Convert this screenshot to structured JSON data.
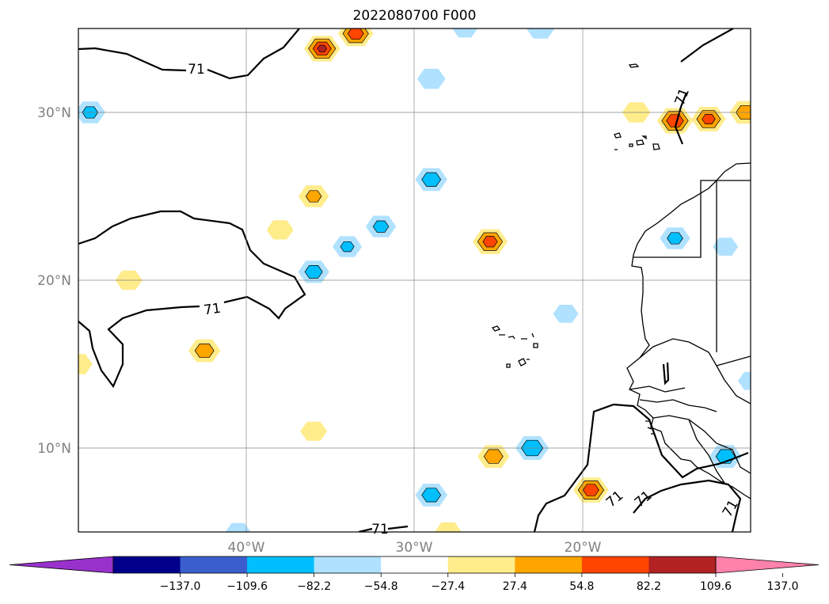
{
  "chart_data": {
    "type": "heatmap",
    "title": "2022080700 F000",
    "map": {
      "lon_range": [
        -50,
        -10
      ],
      "lat_range": [
        5,
        35
      ],
      "grid": true,
      "grid_lons": [
        -40,
        -30,
        -20
      ],
      "grid_lats": [
        10,
        20,
        30
      ],
      "x_tick_labels": [
        "40°W",
        "30°W",
        "20°W"
      ],
      "y_tick_labels": [
        "10°N",
        "20°N",
        "30°N"
      ]
    },
    "contour_level_label": "71",
    "colorbar": {
      "orientation": "horizontal",
      "extend": "both",
      "colors": [
        "#9932cc",
        "#00008b",
        "#3a5fcd",
        "#00bfff",
        "#b0e2ff",
        "#ffffff",
        "#ffec8b",
        "#ffa500",
        "#ff4500",
        "#b22222",
        "#ff82ab"
      ],
      "tick_labels": [
        "−137.0",
        "−109.6",
        "−82.2",
        "−54.8",
        "−27.4",
        "27.4",
        "54.8",
        "82.2",
        "109.6",
        "137.0"
      ]
    },
    "anomaly_blobs": [
      {
        "lon": -35.5,
        "lat": 33.8,
        "value": 110
      },
      {
        "lon": -33.5,
        "lat": 34.7,
        "value": 100
      },
      {
        "lon": -14.5,
        "lat": 29.5,
        "value": 105
      },
      {
        "lon": -12.5,
        "lat": 29.6,
        "value": 90
      },
      {
        "lon": -10.3,
        "lat": 30.0,
        "value": 70
      },
      {
        "lon": -16.8,
        "lat": 30.0,
        "value": 50
      },
      {
        "lon": -25.5,
        "lat": 22.3,
        "value": 95
      },
      {
        "lon": -36.0,
        "lat": 25.0,
        "value": 60
      },
      {
        "lon": -38.0,
        "lat": 23.0,
        "value": 45
      },
      {
        "lon": -47.0,
        "lat": 20.0,
        "value": 45
      },
      {
        "lon": -42.5,
        "lat": 15.8,
        "value": 70
      },
      {
        "lon": -50.0,
        "lat": 15.0,
        "value": 50
      },
      {
        "lon": -36.0,
        "lat": 11.0,
        "value": 45
      },
      {
        "lon": -25.3,
        "lat": 9.5,
        "value": 70
      },
      {
        "lon": -19.5,
        "lat": 7.5,
        "value": 100
      },
      {
        "lon": -28.0,
        "lat": 5.0,
        "value": 45
      },
      {
        "lon": -49.3,
        "lat": 30.0,
        "value": -60
      },
      {
        "lon": -29.0,
        "lat": 32.0,
        "value": -50
      },
      {
        "lon": -29.0,
        "lat": 26.0,
        "value": -70
      },
      {
        "lon": -32.0,
        "lat": 23.2,
        "value": -60
      },
      {
        "lon": -34.0,
        "lat": 22.0,
        "value": -55
      },
      {
        "lon": -36.0,
        "lat": 20.5,
        "value": -65
      },
      {
        "lon": -14.5,
        "lat": 22.5,
        "value": -60
      },
      {
        "lon": -11.5,
        "lat": 22.0,
        "value": -40
      },
      {
        "lon": -21.0,
        "lat": 18.0,
        "value": -40
      },
      {
        "lon": -23.0,
        "lat": 10.0,
        "value": -80
      },
      {
        "lon": -29.0,
        "lat": 7.2,
        "value": -70
      },
      {
        "lon": -11.5,
        "lat": 9.5,
        "value": -70
      },
      {
        "lon": -10.0,
        "lat": 14.0,
        "value": -40
      },
      {
        "lon": -40.5,
        "lat": 5.0,
        "value": -40
      },
      {
        "lon": -27.0,
        "lat": 35.0,
        "value": -40
      },
      {
        "lon": -22.5,
        "lat": 35.0,
        "value": -50
      }
    ]
  }
}
